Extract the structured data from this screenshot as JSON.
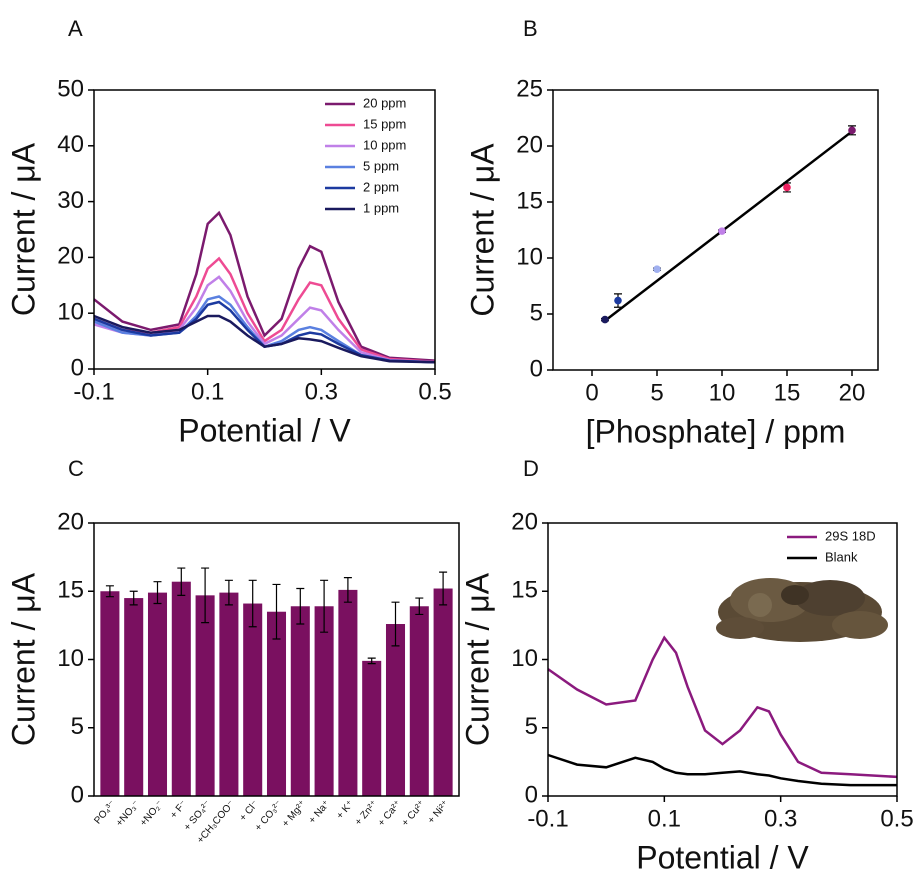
{
  "chart_data": [
    {
      "type": "line",
      "panel": "A",
      "xlabel": "Potential / V",
      "ylabel": "Current / μA",
      "xlim": [
        -0.1,
        0.5
      ],
      "xticks": [
        -0.1,
        0.1,
        0.3,
        0.5
      ],
      "ylim": [
        0,
        50
      ],
      "yticks": [
        0,
        10,
        20,
        30,
        40,
        50
      ],
      "legend": "upper right",
      "x": [
        -0.1,
        -0.05,
        0,
        0.05,
        0.08,
        0.1,
        0.12,
        0.14,
        0.17,
        0.2,
        0.23,
        0.26,
        0.28,
        0.3,
        0.33,
        0.37,
        0.42,
        0.5
      ],
      "series": [
        {
          "name": "20 ppm",
          "color": "#7b1a6e",
          "values": [
            12.5,
            8.5,
            7,
            8,
            17,
            26,
            28,
            24,
            13,
            6,
            9,
            18,
            22,
            21,
            12,
            4,
            2,
            1.5
          ]
        },
        {
          "name": "15 ppm",
          "color": "#ee4b93",
          "values": [
            9,
            7,
            6.5,
            7.5,
            13,
            18,
            19.8,
            17,
            10,
            5,
            7,
            12.5,
            15.5,
            15,
            9,
            3.5,
            1.8,
            1.3
          ]
        },
        {
          "name": "10 ppm",
          "color": "#c080e8",
          "values": [
            8,
            6.5,
            6,
            7,
            11,
            15,
            16.5,
            14,
            8.5,
            4.5,
            6,
            9,
            11,
            10.5,
            7,
            3,
            1.6,
            1.2
          ]
        },
        {
          "name": "5 ppm",
          "color": "#5a80e0",
          "values": [
            8.5,
            6.5,
            6,
            6.5,
            9.5,
            12.5,
            13,
            11.5,
            7.5,
            4,
            5,
            7,
            7.5,
            7,
            5,
            2.5,
            1.5,
            1.2
          ]
        },
        {
          "name": "2 ppm",
          "color": "#1c3aa0",
          "values": [
            9,
            7,
            6,
            6.5,
            9,
            11.5,
            12,
            10.5,
            7,
            4,
            4.5,
            6,
            6.5,
            6.2,
            4.5,
            2.5,
            1.5,
            1.2
          ]
        },
        {
          "name": "1 ppm",
          "color": "#1a1a5e",
          "values": [
            9.5,
            7.5,
            6.5,
            7,
            8.5,
            9.5,
            9.5,
            8.5,
            6,
            4,
            4.5,
            5.5,
            5.3,
            5,
            3.8,
            2.3,
            1.4,
            1.2
          ]
        }
      ]
    },
    {
      "type": "scatter",
      "panel": "B",
      "xlabel": "[Phosphate] / ppm",
      "ylabel": "Current / μA",
      "xlim": [
        -3,
        22
      ],
      "xticks": [
        0,
        5,
        10,
        15,
        20
      ],
      "ylim": [
        0,
        25
      ],
      "yticks": [
        0,
        5,
        10,
        15,
        20,
        25
      ],
      "x": [
        1,
        2,
        5,
        10,
        15,
        20
      ],
      "values": [
        4.5,
        6.2,
        9.0,
        12.4,
        16.3,
        21.4
      ],
      "errors": [
        0.1,
        0.6,
        0.1,
        0.1,
        0.4,
        0.4
      ],
      "colors": [
        "#1a1a5e",
        "#1c3aa0",
        "#a0b0f0",
        "#c080e8",
        "#ee2060",
        "#7b1a6e"
      ],
      "fit": {
        "color": "#000000",
        "x": [
          1,
          20
        ],
        "values": [
          4.4,
          21.3
        ]
      }
    },
    {
      "type": "bar",
      "panel": "C",
      "ylabel": "Current / μA",
      "color": "#7a1060",
      "ylim": [
        0,
        20
      ],
      "yticks": [
        0,
        5,
        10,
        15,
        20
      ],
      "categories": [
        "PO₄³⁻",
        "+NO₃⁻",
        "+NO₂⁻",
        "+ F⁻",
        "+ SO₄²⁻",
        "+CH₃COO⁻",
        "+ Cl⁻",
        "+ CO₃²⁻",
        "+ Mg²⁺",
        "+ Na⁺",
        "+ K⁺",
        "+ Zn²⁺",
        "+ Ca²⁺",
        "+ Cu²⁺",
        "+ Ni²⁺"
      ],
      "values": [
        15.0,
        14.5,
        14.9,
        15.7,
        14.7,
        14.9,
        14.1,
        13.5,
        13.9,
        13.9,
        15.1,
        9.9,
        12.6,
        13.9,
        15.2
      ],
      "errors": [
        0.4,
        0.5,
        0.8,
        1.0,
        2.0,
        0.9,
        1.7,
        2.0,
        1.3,
        1.9,
        0.9,
        0.2,
        1.6,
        0.6,
        1.2
      ]
    },
    {
      "type": "line",
      "panel": "D",
      "xlabel": "Potential / V",
      "ylabel": "Current / μA",
      "xlim": [
        -0.1,
        0.5
      ],
      "xticks": [
        -0.1,
        0.1,
        0.3,
        0.5
      ],
      "ylim": [
        0,
        20
      ],
      "yticks": [
        0,
        5,
        10,
        15,
        20
      ],
      "legend": "upper right",
      "x": [
        -0.1,
        -0.05,
        0,
        0.05,
        0.08,
        0.1,
        0.12,
        0.14,
        0.17,
        0.2,
        0.23,
        0.26,
        0.28,
        0.3,
        0.33,
        0.37,
        0.42,
        0.5
      ],
      "series": [
        {
          "name": "29S 18D",
          "color": "#8b1a7e",
          "values": [
            9.3,
            7.8,
            6.7,
            7,
            10,
            11.6,
            10.5,
            8,
            4.8,
            3.8,
            4.8,
            6.5,
            6.2,
            4.5,
            2.5,
            1.7,
            1.6,
            1.4
          ]
        },
        {
          "name": "Blank",
          "color": "#000000",
          "values": [
            3.0,
            2.3,
            2.1,
            2.8,
            2.5,
            2.0,
            1.7,
            1.6,
            1.6,
            1.7,
            1.8,
            1.6,
            1.5,
            1.3,
            1.1,
            0.9,
            0.8,
            0.8
          ]
        }
      ]
    }
  ]
}
